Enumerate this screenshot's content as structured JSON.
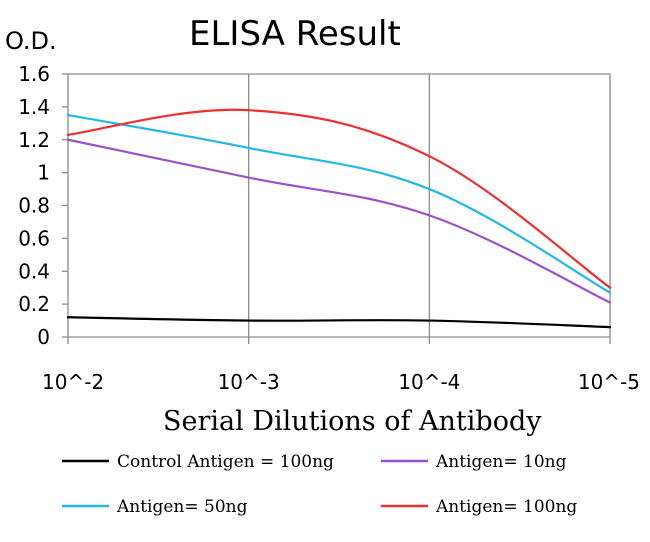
{
  "chart_data": {
    "type": "line",
    "title": "ELISA Result",
    "ylabel": "O.D.",
    "xlabel": "Serial Dilutions of Antibody",
    "categories": [
      "10^-2",
      "10^-3",
      "10^-4",
      "10^-5"
    ],
    "ylim": [
      0,
      1.6
    ],
    "yticks": [
      "0",
      "0.2",
      "0.4",
      "0.6",
      "0.8",
      "1",
      "1.2",
      "1.4",
      "1.6"
    ],
    "grid": "vertical",
    "legend_position": "bottom",
    "series": [
      {
        "name": "Control Antigen = 100ng",
        "color": "#000000",
        "values": [
          0.12,
          0.1,
          0.1,
          0.06
        ]
      },
      {
        "name": "Antigen= 10ng",
        "color": "#9a52cc",
        "values": [
          1.2,
          0.97,
          0.74,
          0.21
        ]
      },
      {
        "name": "Antigen= 50ng",
        "color": "#25b7ea",
        "values": [
          1.35,
          1.15,
          0.9,
          0.27
        ]
      },
      {
        "name": "Antigen= 100ng",
        "color": "#ef2f2f",
        "values": [
          1.23,
          1.38,
          1.1,
          0.3
        ]
      }
    ]
  }
}
